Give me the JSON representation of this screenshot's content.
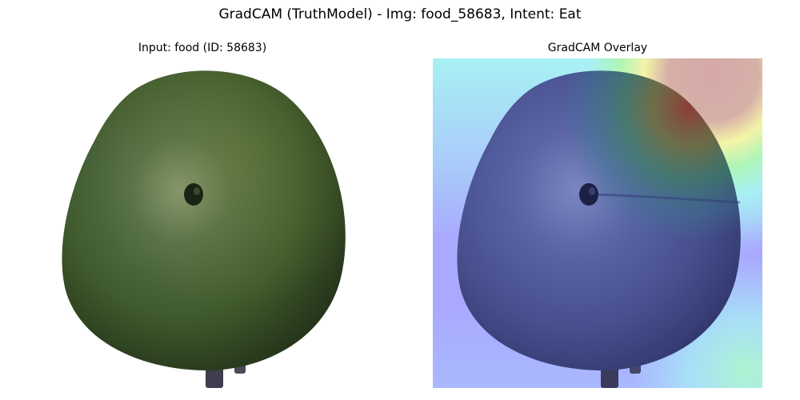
{
  "figure": {
    "title": "GradCAM (TruthModel) - Img: food_58683, Intent: Eat"
  },
  "panels": [
    {
      "title": "Input: food (ID: 58683)"
    },
    {
      "title": "GradCAM Overlay"
    }
  ],
  "image": {
    "subject": "green round fruit",
    "colors": {
      "fruit_dark": "#2a3d1e",
      "fruit_mid": "#3f5a2c",
      "fruit_highlight": "#8a9a78",
      "stem": "#3e3e4e",
      "background": "#ffffff"
    }
  },
  "heatmap": {
    "colormap": "jet",
    "colors": {
      "cold": "#a9a9ff",
      "cyan": "#a8f0f4",
      "green": "#aef5b8",
      "yellow": "#f4f4a8",
      "hot": "#d6a8a8"
    }
  }
}
